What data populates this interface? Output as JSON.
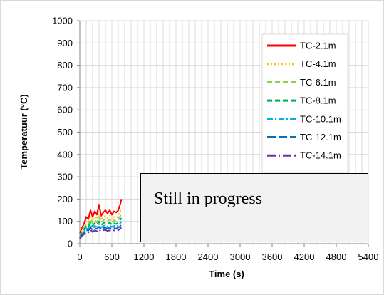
{
  "chart_data": {
    "type": "line",
    "xlabel": "Time (s)",
    "ylabel": "Temperatuur (°C)",
    "xlim": [
      0,
      5400
    ],
    "ylim": [
      0,
      1000
    ],
    "x_ticks": [
      0,
      600,
      1200,
      1800,
      2400,
      3000,
      3600,
      4200,
      4800,
      5400
    ],
    "y_ticks": [
      0,
      100,
      200,
      300,
      400,
      500,
      600,
      700,
      800,
      900,
      1000
    ],
    "grid": true,
    "legend_position": "right",
    "annotation": "Still in progress",
    "series": [
      {
        "name": "TC-2.1m",
        "color": "#ff0000",
        "dash": "solid",
        "x": [
          0,
          40,
          80,
          120,
          160,
          200,
          240,
          280,
          320,
          360,
          400,
          440,
          480,
          520,
          560,
          600,
          640,
          680,
          720,
          760,
          780
        ],
        "y": [
          45,
          70,
          90,
          120,
          110,
          150,
          120,
          145,
          130,
          175,
          125,
          140,
          150,
          135,
          150,
          130,
          145,
          140,
          150,
          180,
          200
        ]
      },
      {
        "name": "TC-4.1m",
        "color": "#ffc000",
        "dash": "dotted",
        "x": [
          0,
          40,
          80,
          120,
          160,
          200,
          240,
          280,
          320,
          360,
          400,
          440,
          480,
          520,
          560,
          600,
          640,
          680,
          720,
          760,
          780
        ],
        "y": [
          40,
          60,
          80,
          100,
          95,
          125,
          100,
          120,
          110,
          145,
          105,
          120,
          125,
          115,
          125,
          110,
          120,
          115,
          125,
          145,
          160
        ]
      },
      {
        "name": "TC-6.1m",
        "color": "#92d050",
        "dash": "dashed",
        "x": [
          0,
          40,
          80,
          120,
          160,
          200,
          240,
          280,
          320,
          360,
          400,
          440,
          480,
          520,
          560,
          600,
          640,
          680,
          720,
          760,
          780
        ],
        "y": [
          35,
          55,
          70,
          90,
          85,
          110,
          90,
          105,
          95,
          120,
          95,
          105,
          110,
          100,
          110,
          95,
          105,
          100,
          108,
          125,
          135
        ]
      },
      {
        "name": "TC-8.1m",
        "color": "#00b050",
        "dash": "dashed",
        "x": [
          0,
          40,
          80,
          120,
          160,
          200,
          240,
          280,
          320,
          360,
          400,
          440,
          480,
          520,
          560,
          600,
          640,
          680,
          720,
          760,
          780
        ],
        "y": [
          30,
          50,
          62,
          80,
          75,
          95,
          80,
          92,
          85,
          100,
          82,
          92,
          95,
          88,
          95,
          85,
          92,
          88,
          95,
          108,
          115
        ]
      },
      {
        "name": "TC-10.1m",
        "color": "#00b0f0",
        "dash": "dashdot",
        "x": [
          0,
          40,
          80,
          120,
          160,
          200,
          240,
          280,
          320,
          360,
          400,
          440,
          480,
          520,
          560,
          600,
          640,
          680,
          720,
          760,
          780
        ],
        "y": [
          25,
          45,
          55,
          70,
          65,
          82,
          70,
          80,
          75,
          88,
          72,
          80,
          82,
          77,
          82,
          75,
          80,
          77,
          82,
          92,
          100
        ]
      },
      {
        "name": "TC-12.1m",
        "color": "#0070c0",
        "dash": "longdash",
        "x": [
          0,
          40,
          80,
          120,
          160,
          200,
          240,
          280,
          320,
          360,
          400,
          440,
          480,
          520,
          560,
          600,
          640,
          680,
          720,
          760,
          780
        ],
        "y": [
          22,
          40,
          50,
          62,
          58,
          72,
          62,
          70,
          66,
          76,
          64,
          70,
          72,
          68,
          72,
          66,
          70,
          68,
          72,
          80,
          88
        ]
      },
      {
        "name": "TC-14.1m",
        "color": "#7030a0",
        "dash": "longdashdot",
        "x": [
          0,
          40,
          80,
          120,
          160,
          200,
          240,
          280,
          320,
          360,
          400,
          440,
          480,
          520,
          560,
          600,
          640,
          680,
          720,
          760,
          780
        ],
        "y": [
          20,
          35,
          42,
          52,
          50,
          62,
          52,
          60,
          56,
          64,
          54,
          60,
          62,
          57,
          60,
          56,
          60,
          57,
          60,
          68,
          72
        ]
      }
    ]
  }
}
